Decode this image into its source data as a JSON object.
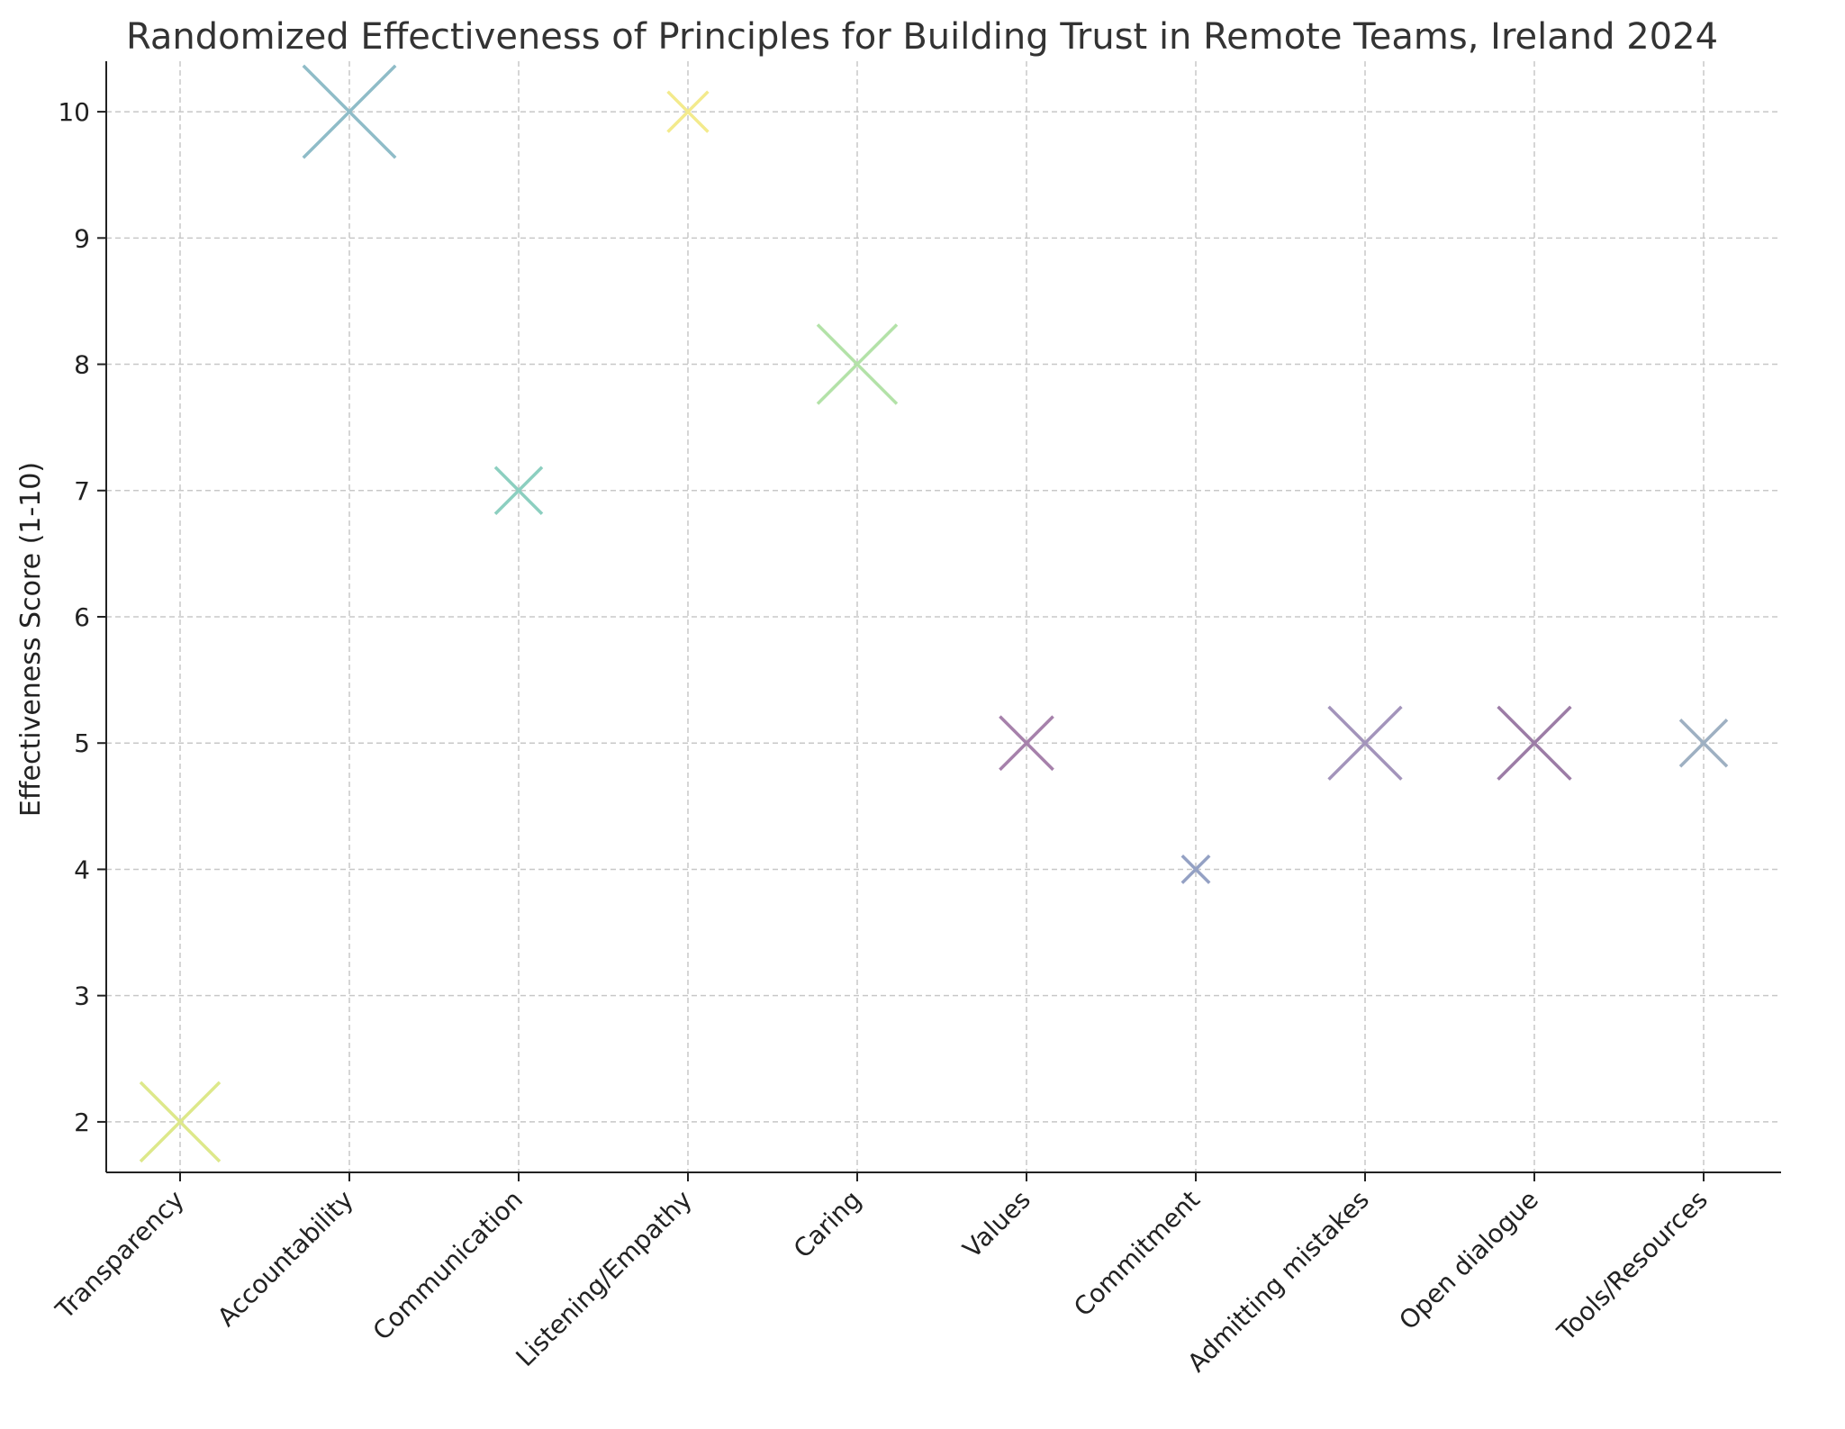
{
  "chart_data": {
    "type": "scatter",
    "title": "Randomized Effectiveness of Principles for Building Trust in Remote Teams, Ireland 2024",
    "xlabel": "",
    "ylabel": "Effectiveness Score (1-10)",
    "ylim": [
      1.6,
      10.4
    ],
    "yticks": [
      2,
      3,
      4,
      5,
      6,
      7,
      8,
      9,
      10
    ],
    "grid": true,
    "marker": "x",
    "categories": [
      "Transparency",
      "Accountability",
      "Communication",
      "Listening/Empathy",
      "Caring",
      "Values",
      "Commitment",
      "Admitting mistakes",
      "Open dialogue",
      "Tools/Resources"
    ],
    "values": [
      2,
      10,
      7,
      10,
      8,
      5,
      4,
      5,
      5,
      5
    ],
    "marker_size": [
      5,
      6,
      2.5,
      2,
      5,
      3,
      1,
      4.5,
      4.5,
      2.5
    ],
    "colors": [
      "#dde88a",
      "#8fbcc8",
      "#8ccfc0",
      "#f3ea8c",
      "#b3e2a8",
      "#a681ab",
      "#94a1c4",
      "#a394bb",
      "#9c7ca6",
      "#9eb0c2"
    ],
    "axis_color": "#222222",
    "grid_color": "#c8c8c8",
    "title_color": "#333333"
  }
}
